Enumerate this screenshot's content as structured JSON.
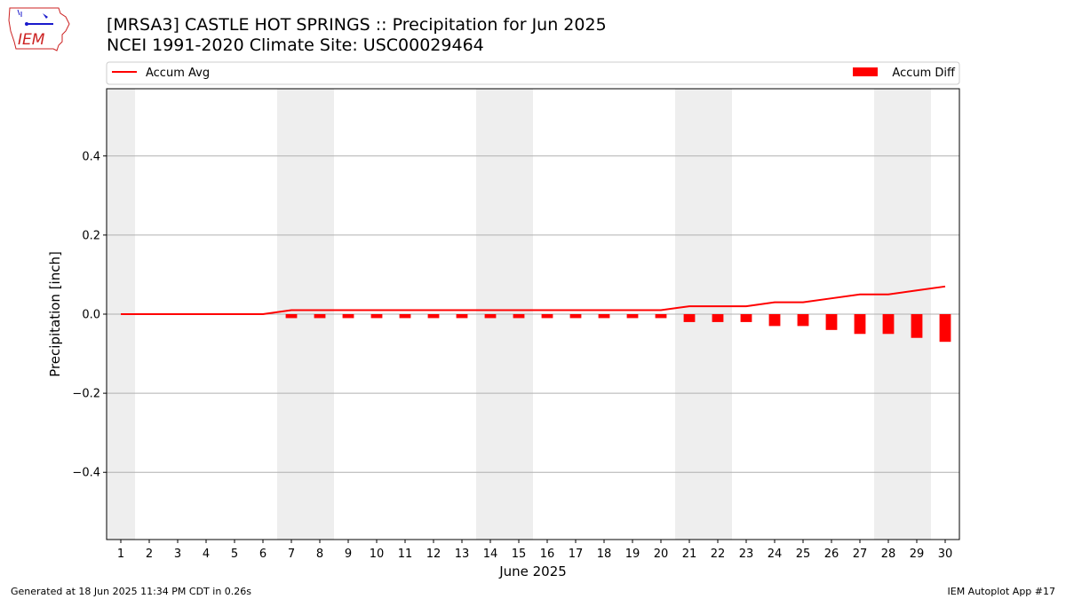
{
  "header": {
    "title_line1": "[MRSA3] CASTLE HOT SPRINGS :: Precipitation for Jun 2025",
    "title_line2": "NCEI 1991-2020 Climate Site: USC00029464"
  },
  "logo": {
    "text": "IEM",
    "icon": "iem-iowa-logo"
  },
  "footer": {
    "left": "Generated at 18 Jun 2025 11:34 PM CDT in 0.26s",
    "right": "IEM Autoplot App #17"
  },
  "colors": {
    "series": "#ff0000",
    "weekend_band": "#eeeeee",
    "grid": "#b0b0b0",
    "logo_blue": "#1a1acc",
    "logo_red": "#cc2222"
  },
  "chart_data": {
    "type": "bar",
    "xlabel": "June 2025",
    "ylabel": "Precipitation [inch]",
    "ylim": [
      -0.57,
      0.57
    ],
    "yticks": [
      -0.4,
      -0.2,
      0.0,
      0.2,
      0.4
    ],
    "ytick_labels": [
      "−0.4",
      "−0.2",
      "0.0",
      "0.2",
      "0.4"
    ],
    "grid": "horizontal",
    "legend_placement": "top, outside plot",
    "x": [
      1,
      2,
      3,
      4,
      5,
      6,
      7,
      8,
      9,
      10,
      11,
      12,
      13,
      14,
      15,
      16,
      17,
      18,
      19,
      20,
      21,
      22,
      23,
      24,
      25,
      26,
      27,
      28,
      29,
      30
    ],
    "x_tick_labels": [
      "1",
      "2",
      "3",
      "4",
      "5",
      "6",
      "7",
      "8",
      "9",
      "10",
      "11",
      "12",
      "13",
      "14",
      "15",
      "16",
      "17",
      "18",
      "19",
      "20",
      "21",
      "22",
      "23",
      "24",
      "25",
      "26",
      "27",
      "28",
      "29",
      "30"
    ],
    "weekend_days": [
      1,
      7,
      8,
      14,
      15,
      21,
      22,
      28,
      29
    ],
    "series": [
      {
        "name": "Accum Avg",
        "type": "line",
        "values": [
          0,
          0,
          0,
          0,
          0,
          0,
          0.01,
          0.01,
          0.01,
          0.01,
          0.01,
          0.01,
          0.01,
          0.01,
          0.01,
          0.01,
          0.01,
          0.01,
          0.01,
          0.01,
          0.02,
          0.02,
          0.02,
          0.03,
          0.03,
          0.04,
          0.05,
          0.05,
          0.06,
          0.07
        ]
      },
      {
        "name": "Accum Diff",
        "type": "bar",
        "values": [
          0,
          0,
          0,
          0,
          0,
          0,
          -0.01,
          -0.01,
          -0.01,
          -0.01,
          -0.01,
          -0.01,
          -0.01,
          -0.01,
          -0.01,
          -0.01,
          -0.01,
          -0.01,
          -0.01,
          -0.01,
          -0.02,
          -0.02,
          -0.02,
          -0.03,
          -0.03,
          -0.04,
          -0.05,
          -0.05,
          -0.06,
          -0.07
        ]
      }
    ]
  }
}
